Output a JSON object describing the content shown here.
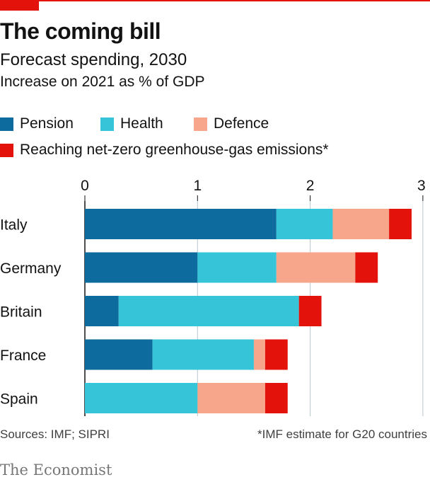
{
  "header": {
    "title": "The coming bill",
    "subtitle": "Forecast spending, 2030",
    "description": "Increase on 2021 as % of GDP"
  },
  "legend": [
    {
      "label": "Pension",
      "color": "#0e6b9e"
    },
    {
      "label": "Health",
      "color": "#35c4d8"
    },
    {
      "label": "Defence",
      "color": "#f7a68b"
    },
    {
      "label": "Reaching net-zero greenhouse-gas emissions*",
      "color": "#e3120b"
    }
  ],
  "chart_data": {
    "type": "bar",
    "orientation": "horizontal",
    "stacked": true,
    "categories": [
      "Italy",
      "Germany",
      "Britain",
      "France",
      "Spain"
    ],
    "series": [
      {
        "name": "Pension",
        "color": "#0e6b9e",
        "values": [
          1.7,
          1.0,
          0.3,
          0.6,
          0.0
        ]
      },
      {
        "name": "Health",
        "color": "#35c4d8",
        "values": [
          0.5,
          0.7,
          1.6,
          0.9,
          1.0
        ]
      },
      {
        "name": "Defence",
        "color": "#f7a68b",
        "values": [
          0.5,
          0.7,
          0.0,
          0.1,
          0.6
        ]
      },
      {
        "name": "Reaching net-zero greenhouse-gas emissions*",
        "color": "#e3120b",
        "values": [
          0.2,
          0.2,
          0.2,
          0.2,
          0.2
        ]
      }
    ],
    "xlim": [
      0,
      3
    ],
    "xticks": [
      "0",
      "1",
      "2",
      "3"
    ],
    "grid": true,
    "legend_position": "top"
  },
  "footer": {
    "source": "Sources: IMF; SIPRI",
    "footnote": "*IMF estimate for G20 countries",
    "brand": "The Economist"
  }
}
